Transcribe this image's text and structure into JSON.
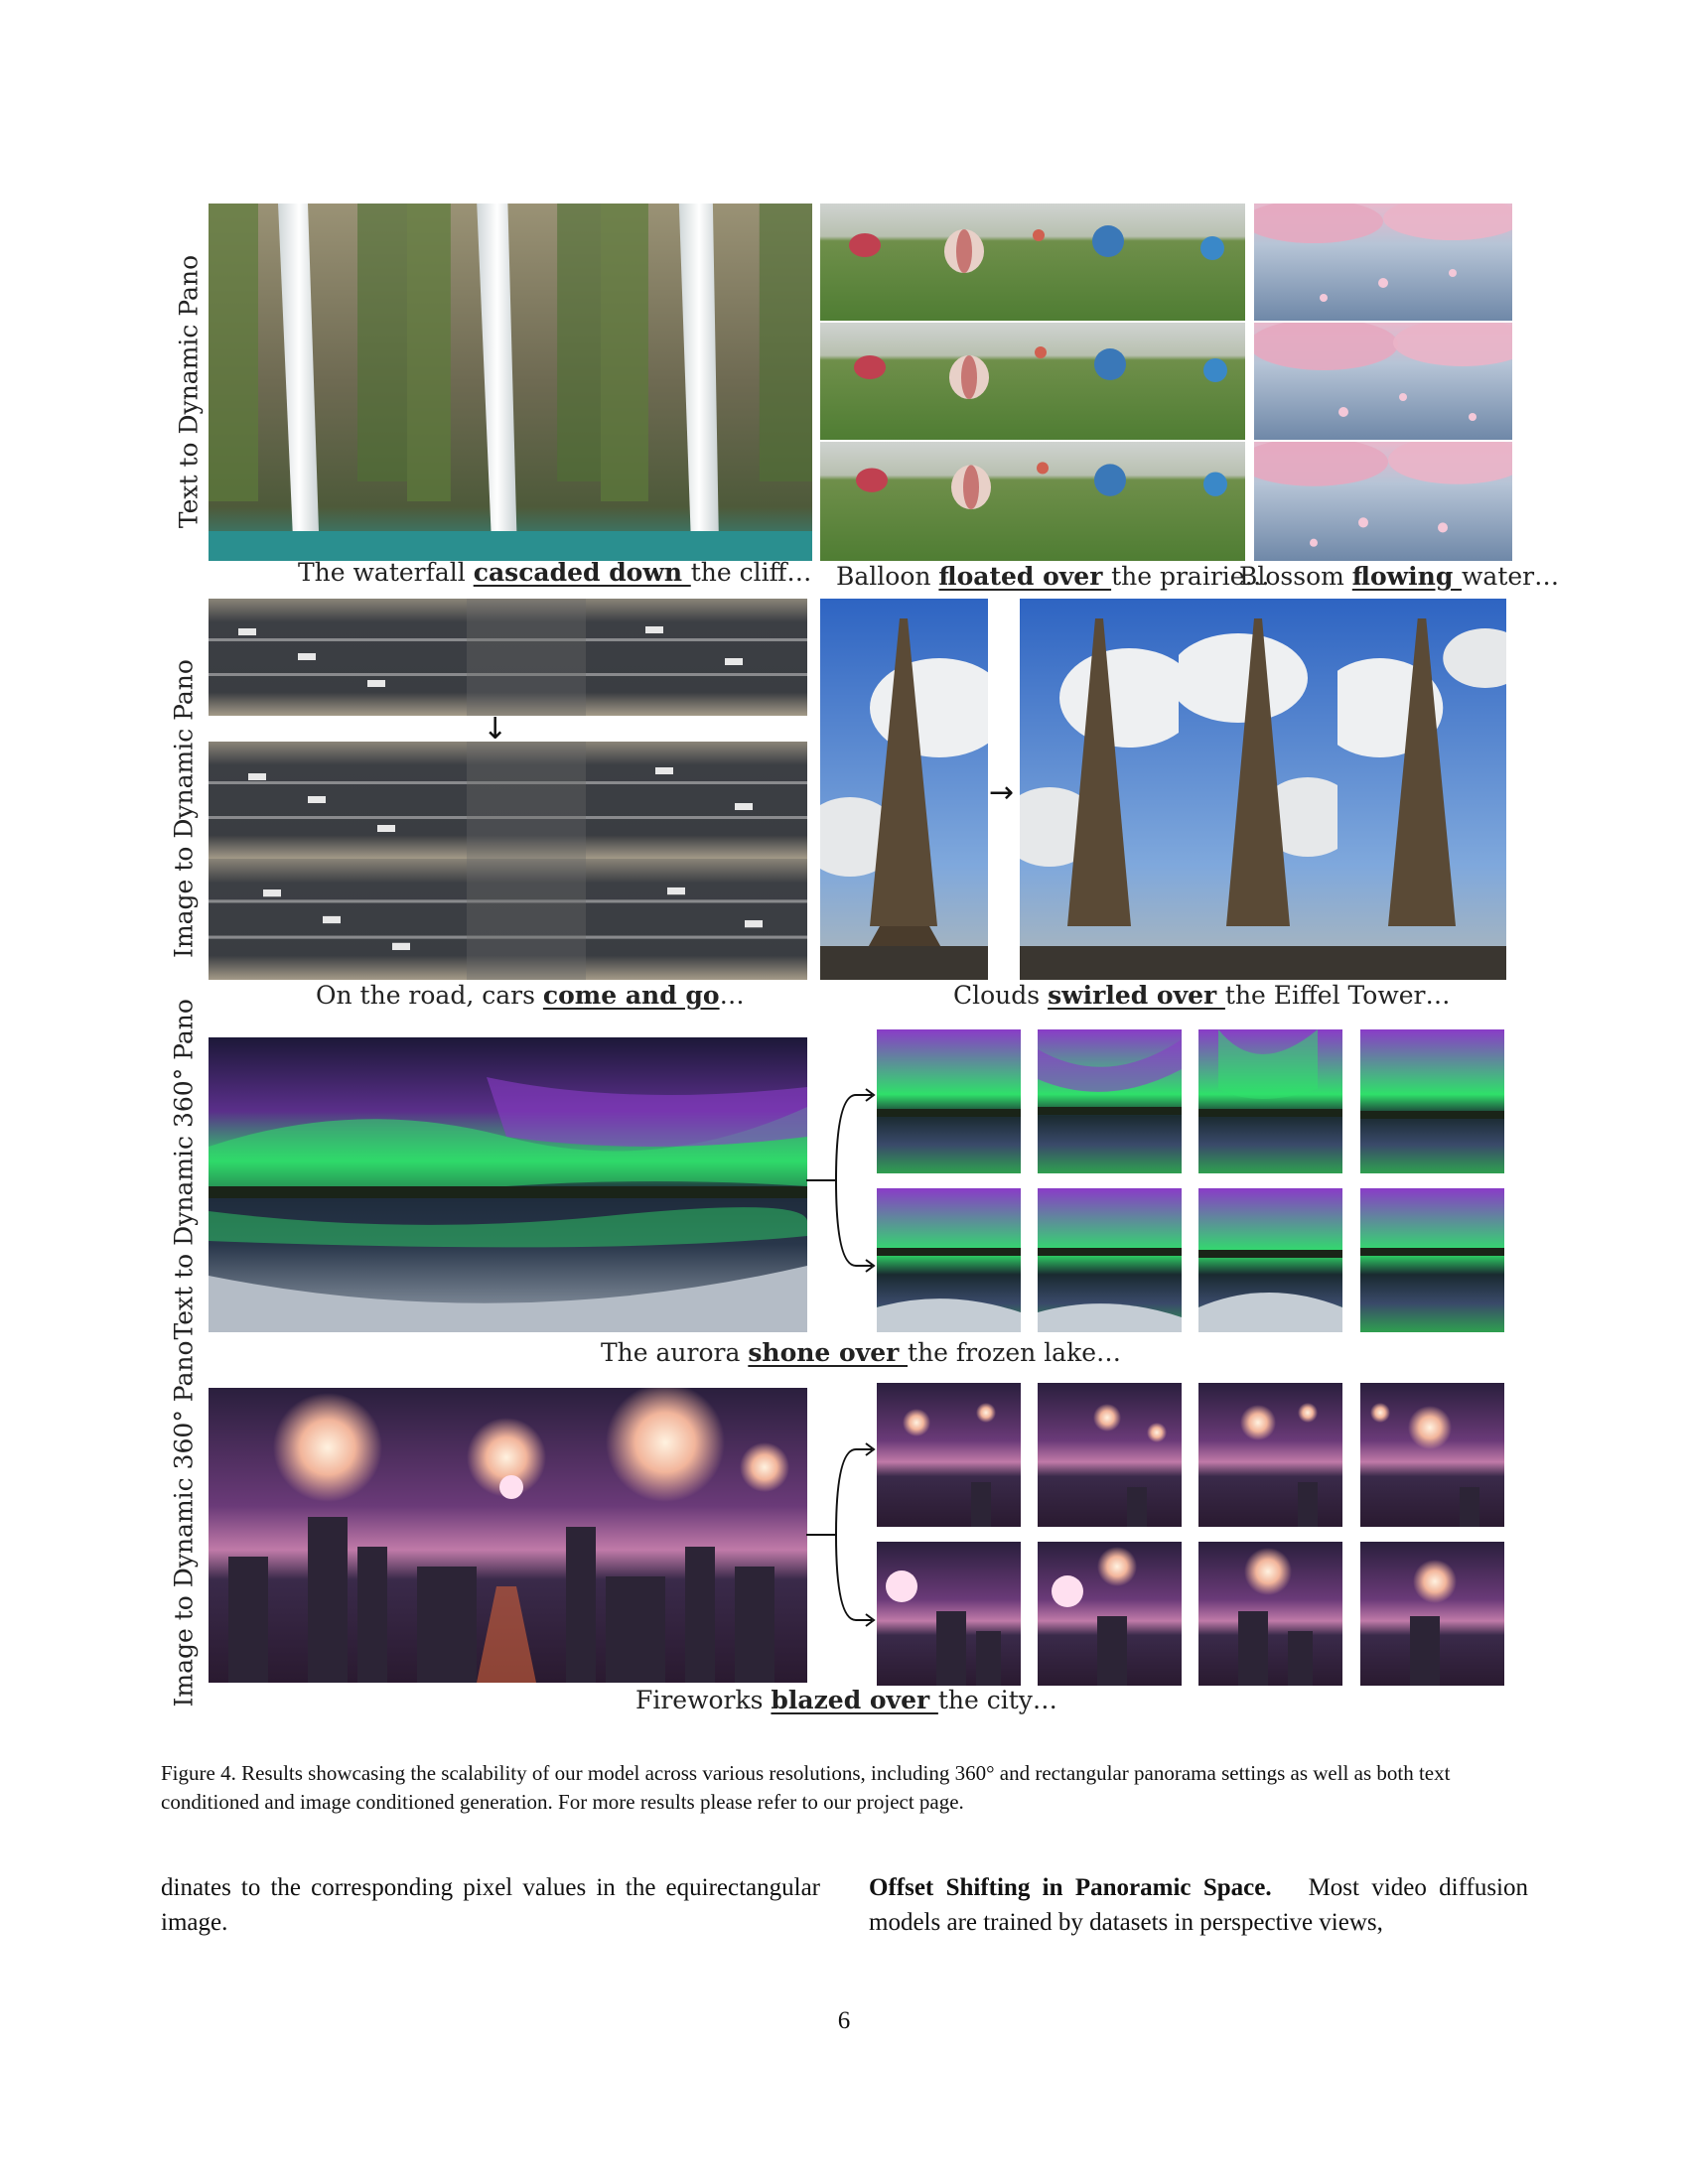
{
  "figure": {
    "rows": [
      {
        "label": "Text to Dynamic Pano"
      },
      {
        "label": "Image to Dynamic Pano"
      },
      {
        "label": "Text to Dynamic 360° Pano"
      },
      {
        "label": "Image to Dynamic 360° Pano"
      }
    ],
    "captions": {
      "waterfall": {
        "pre": "The waterfall ",
        "bold": "cascaded down ",
        "post": "the cliff…"
      },
      "balloon": {
        "pre": "Balloon ",
        "bold": "floated over ",
        "post": "the prairie…"
      },
      "blossom": {
        "pre": "Blossom ",
        "bold": "flowing ",
        "post": "water…"
      },
      "road": {
        "pre": "On the road, cars ",
        "bold": "come and go",
        "post": "…"
      },
      "eiffel": {
        "pre": "Clouds ",
        "bold": "swirled over ",
        "post": "the Eiffel Tower…"
      },
      "aurora": {
        "pre": "The aurora ",
        "bold": "shone over ",
        "post": "the frozen lake…"
      },
      "fireworks": {
        "pre": "Fireworks ",
        "bold": "blazed over ",
        "post": "the city…"
      }
    },
    "caption": "Figure 4. Results showcasing the scalability of our model across various resolutions, including 360° and rectangular panorama settings as well as both text conditioned and image conditioned generation. For more results please refer to our project page."
  },
  "body": {
    "left_col": "dinates to the corresponding pixel values in the equirectangular image.",
    "right_col_heading": "Offset Shifting in Panoramic Space.",
    "right_col_text": "Most video diffusion models are trained by datasets in perspective views,"
  },
  "page_number": "6",
  "colors": {
    "water": "#2a8f8f",
    "rock": "#6e6a52",
    "grass": "#5f8a3e",
    "sky": "#3a6fc4",
    "aurora_green": "#2fe06a",
    "aurora_purple": "#8a3cc8",
    "night": "#2a1f3d",
    "firework": "#f2b59b",
    "city": "#3a2a4a"
  }
}
